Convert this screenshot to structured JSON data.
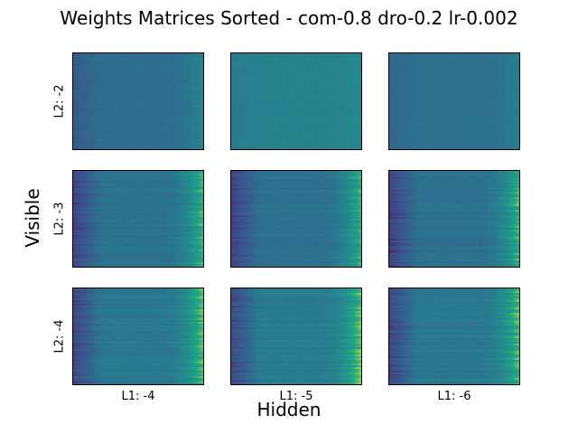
{
  "chart_data": {
    "type": "heatmap",
    "title": "Weights Matrices Sorted - com-0.8 dro-0.2 lr-0.002",
    "xlabel": "Hidden",
    "ylabel": "Visible",
    "colormap": "viridis",
    "row_labels": [
      "L2: -2",
      "L2: -3",
      "L2: -4"
    ],
    "col_labels": [
      "L1: -4",
      "L1: -5",
      "L1: -6"
    ],
    "panels": [
      {
        "row": 0,
        "col": 0,
        "base": 0.45,
        "edge_contrast": 0.35
      },
      {
        "row": 0,
        "col": 1,
        "base": 0.55,
        "edge_contrast": 0.15
      },
      {
        "row": 0,
        "col": 2,
        "base": 0.47,
        "edge_contrast": 0.2
      },
      {
        "row": 1,
        "col": 0,
        "base": 0.48,
        "edge_contrast": 0.9
      },
      {
        "row": 1,
        "col": 1,
        "base": 0.47,
        "edge_contrast": 0.9
      },
      {
        "row": 1,
        "col": 2,
        "base": 0.47,
        "edge_contrast": 0.95
      },
      {
        "row": 2,
        "col": 0,
        "base": 0.5,
        "edge_contrast": 0.95
      },
      {
        "row": 2,
        "col": 1,
        "base": 0.52,
        "edge_contrast": 0.95
      },
      {
        "row": 2,
        "col": 2,
        "base": 0.5,
        "edge_contrast": 0.95
      }
    ]
  }
}
